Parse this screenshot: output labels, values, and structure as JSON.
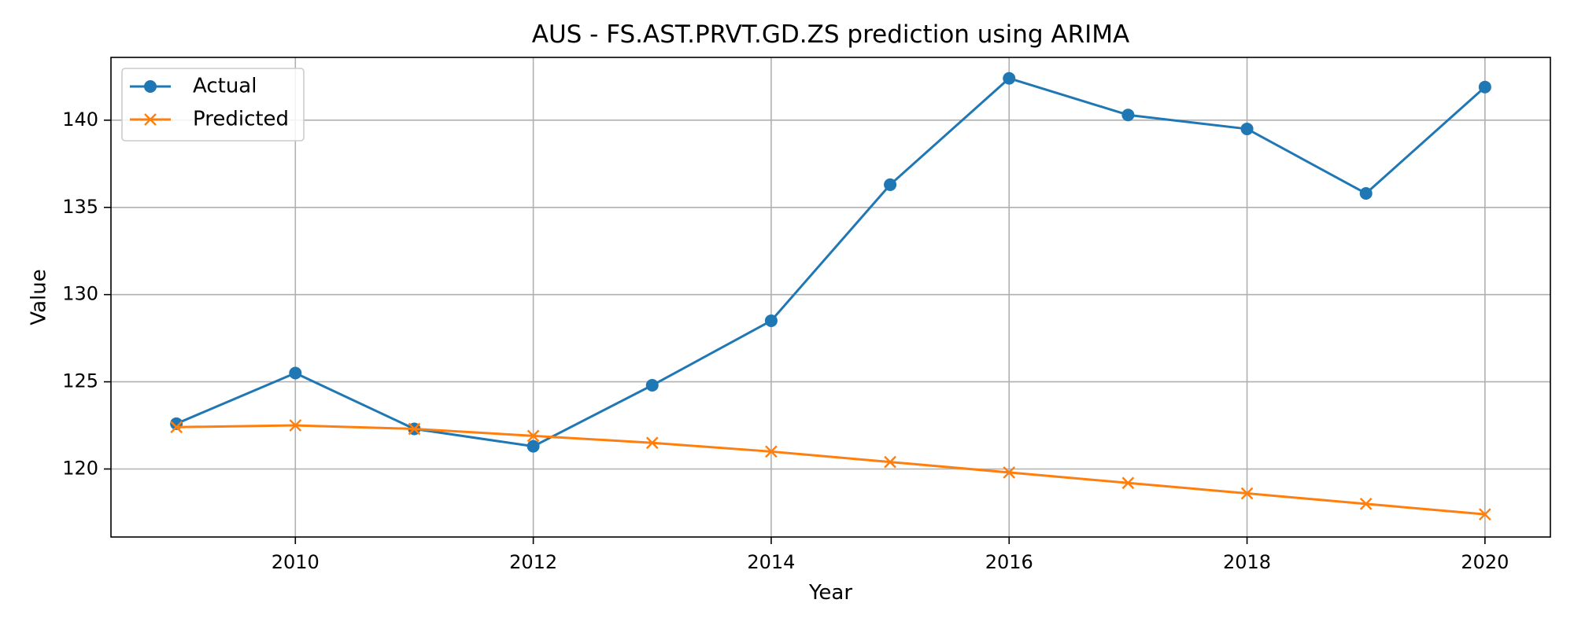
{
  "chart_data": {
    "type": "line",
    "title": "AUS - FS.AST.PRVT.GD.ZS prediction using ARIMA",
    "xlabel": "Year",
    "ylabel": "Value",
    "x": [
      2009,
      2010,
      2011,
      2012,
      2013,
      2014,
      2015,
      2016,
      2017,
      2018,
      2019,
      2020
    ],
    "xlim": [
      2008.45,
      2020.55
    ],
    "ylim": [
      116.1,
      143.6
    ],
    "xticks": [
      2010,
      2012,
      2014,
      2016,
      2018,
      2020
    ],
    "yticks": [
      120,
      125,
      130,
      135,
      140
    ],
    "grid": true,
    "legend_position": "top-left",
    "series": [
      {
        "name": "Actual",
        "color": "#1f77b4",
        "marker": "circle",
        "values": [
          122.6,
          125.5,
          122.3,
          121.3,
          124.8,
          128.5,
          136.3,
          142.4,
          140.3,
          139.5,
          135.8,
          141.9
        ]
      },
      {
        "name": "Predicted",
        "color": "#ff7f0e",
        "marker": "x",
        "values": [
          122.4,
          122.5,
          122.3,
          121.9,
          121.5,
          121.0,
          120.4,
          119.8,
          119.2,
          118.6,
          118.0,
          117.4
        ]
      }
    ]
  }
}
